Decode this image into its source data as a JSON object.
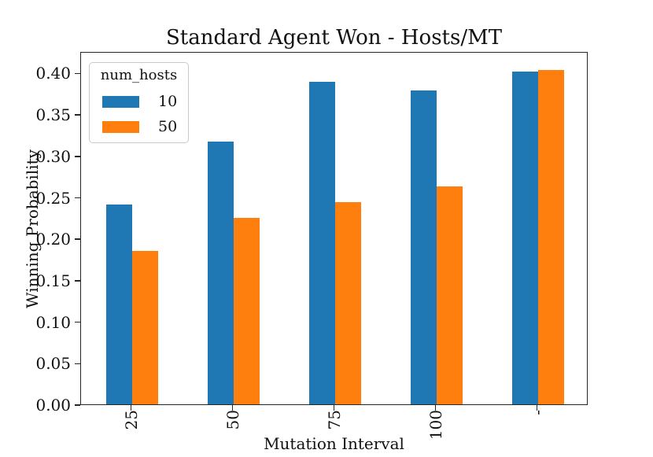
{
  "chart_data": {
    "type": "bar",
    "title": "Standard Agent Won - Hosts/MT",
    "xlabel": "Mutation Interval",
    "ylabel": "Winning Probability",
    "legend_title": "num_hosts",
    "legend_position": "upper left",
    "categories": [
      "25",
      "50",
      "75",
      "100",
      "-"
    ],
    "series": [
      {
        "name": "10",
        "color": "#1f77b4",
        "values": [
          0.241,
          0.317,
          0.389,
          0.379,
          0.401
        ]
      },
      {
        "name": "50",
        "color": "#ff7f0e",
        "values": [
          0.185,
          0.225,
          0.244,
          0.263,
          0.403
        ]
      }
    ],
    "ylim": [
      0,
      0.426
    ],
    "yticks": [
      "0.00",
      "0.05",
      "0.10",
      "0.15",
      "0.20",
      "0.25",
      "0.30",
      "0.35",
      "0.40"
    ],
    "grid": false,
    "axis_color": "#262626",
    "background": "#ffffff"
  }
}
